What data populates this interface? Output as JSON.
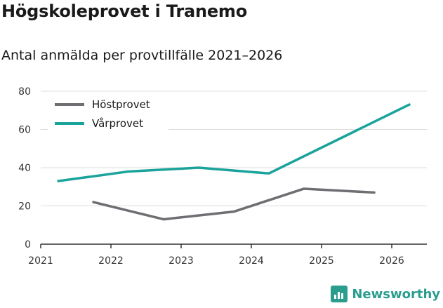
{
  "chart_data": {
    "type": "line",
    "title": "Högskoleprovet i Tranemo",
    "subtitle": "Antal anmälda per provtillfälle 2021–2026",
    "xlabel": "",
    "ylabel": "",
    "x_ticks": [
      "2021",
      "2022",
      "2023",
      "2024",
      "2025",
      "2026"
    ],
    "y_ticks": [
      0,
      20,
      40,
      60,
      80
    ],
    "ylim": [
      0,
      80
    ],
    "xlim": [
      2021,
      2026.5
    ],
    "series": [
      {
        "name": "Höstprovet",
        "color": "#6e6e73",
        "x": [
          2021.75,
          2022.75,
          2023.75,
          2024.75,
          2025.75
        ],
        "y": [
          22,
          13,
          17,
          29,
          27
        ]
      },
      {
        "name": "Vårprovet",
        "color": "#1aa39a",
        "x": [
          2021.25,
          2022.25,
          2023.25,
          2024.25,
          2025.25,
          2026.25
        ],
        "y": [
          33,
          38,
          40,
          37,
          55,
          73
        ]
      }
    ],
    "legend_position": "top-left"
  },
  "brand": {
    "name": "Newsworthy",
    "color": "#2a9d8f"
  }
}
